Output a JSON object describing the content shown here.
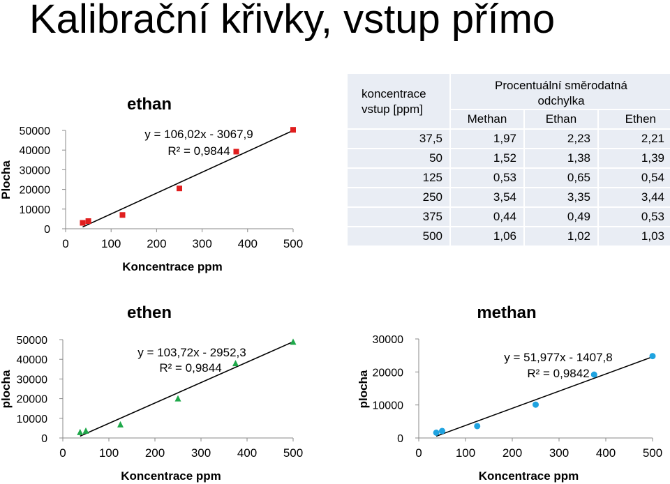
{
  "slide": {
    "title": "Kalibrační křivky, vstup přímo"
  },
  "chart_data": [
    {
      "id": "ethan",
      "type": "scatter",
      "title": "ethan",
      "xlabel": "Koncentrace ppm",
      "ylabel": "Plocha",
      "xlim": [
        0,
        500
      ],
      "ylim": [
        0,
        50000
      ],
      "xticks": [
        "0",
        "100",
        "200",
        "300",
        "400",
        "500"
      ],
      "yticks": [
        "0",
        "10000",
        "20000",
        "30000",
        "40000",
        "50000"
      ],
      "marker": "square",
      "color": "#e01e1e",
      "points": [
        [
          37.5,
          3000
        ],
        [
          50,
          3900
        ],
        [
          125,
          7000
        ],
        [
          250,
          20500
        ],
        [
          375,
          39200
        ],
        [
          500,
          50300
        ]
      ],
      "trendline": {
        "slope": 106.02,
        "intercept": -3067.9,
        "x_range": [
          37.5,
          500
        ]
      },
      "equation": "y = 106,02x - 3067,9",
      "r2": "R² = 0,9844",
      "grid": false
    },
    {
      "id": "ethen",
      "type": "scatter",
      "title": "ethen",
      "xlabel": "Koncentrace ppm",
      "ylabel": "plocha",
      "xlim": [
        0,
        500
      ],
      "ylim": [
        0,
        50000
      ],
      "xticks": [
        "0",
        "100",
        "200",
        "300",
        "400",
        "500"
      ],
      "yticks": [
        "0",
        "10000",
        "20000",
        "30000",
        "40000",
        "50000"
      ],
      "marker": "triangle",
      "color": "#1fa84a",
      "points": [
        [
          37.5,
          2900
        ],
        [
          50,
          3600
        ],
        [
          125,
          6800
        ],
        [
          250,
          20000
        ],
        [
          375,
          37900
        ],
        [
          500,
          48800
        ]
      ],
      "trendline": {
        "slope": 103.72,
        "intercept": -2952.3,
        "x_range": [
          37.5,
          500
        ]
      },
      "equation": "y = 103,72x - 2952,3",
      "r2": "R² = 0,9844",
      "grid": false
    },
    {
      "id": "methan",
      "type": "scatter",
      "title": "methan",
      "xlabel": "Koncentrace ppm",
      "ylabel": "plocha",
      "xlim": [
        0,
        500
      ],
      "ylim": [
        0,
        30000
      ],
      "xticks": [
        "0",
        "100",
        "200",
        "300",
        "400",
        "500"
      ],
      "yticks": [
        "0",
        "10000",
        "20000",
        "30000"
      ],
      "marker": "circle",
      "color": "#1fa3e0",
      "points": [
        [
          37.5,
          1600
        ],
        [
          50,
          2100
        ],
        [
          125,
          3600
        ],
        [
          250,
          10100
        ],
        [
          375,
          19200
        ],
        [
          500,
          24800
        ]
      ],
      "trendline": {
        "slope": 51.977,
        "intercept": -1407.8,
        "x_range": [
          37.5,
          500
        ]
      },
      "equation": "y = 51,977x - 1407,8",
      "r2": "R² = 0,9842",
      "grid": false
    }
  ],
  "table": {
    "left_header_line1": "koncentrace",
    "left_header_line2": "vstup [ppm]",
    "span_header_line1": "Procentuální směrodatná",
    "span_header_line2": "odchylka",
    "columns": [
      "Methan",
      "Ethan",
      "Ethen"
    ],
    "rows": [
      [
        "37,5",
        "1,97",
        "2,23",
        "2,21"
      ],
      [
        "50",
        "1,52",
        "1,38",
        "1,39"
      ],
      [
        "125",
        "0,53",
        "0,65",
        "0,54"
      ],
      [
        "250",
        "3,54",
        "3,35",
        "3,44"
      ],
      [
        "375",
        "0,44",
        "0,49",
        "0,53"
      ],
      [
        "500",
        "1,06",
        "1,02",
        "1,03"
      ]
    ]
  }
}
